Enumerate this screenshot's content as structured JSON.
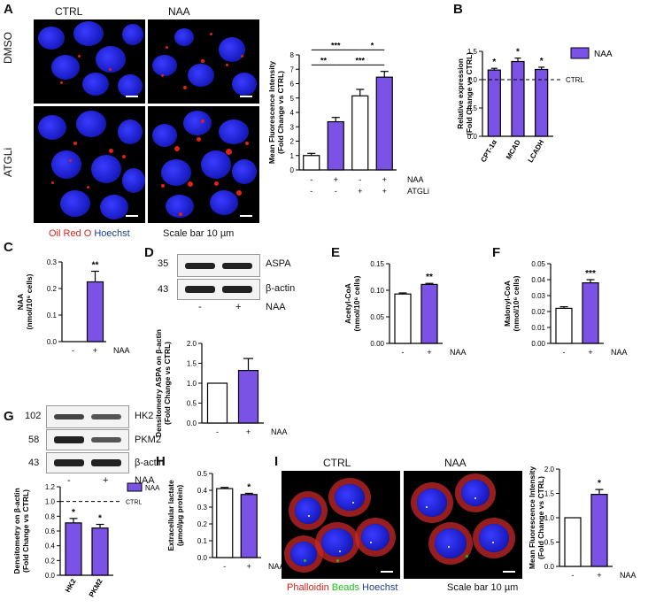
{
  "colors": {
    "naa": "#7b52e6",
    "ctrl": "#ffffff",
    "red": "#e0201a",
    "green": "#19c219",
    "blue": "#1b3d8f"
  },
  "panels": {
    "A": "A",
    "B": "B",
    "C": "C",
    "D": "D",
    "E": "E",
    "F": "F",
    "G": "G",
    "H": "H",
    "I": "I"
  },
  "A": {
    "col_ctrl": "CTRL",
    "col_naa": "NAA",
    "row_dmso": "DMSO",
    "row_atgli": "ATGLi",
    "legend_oil": "Oil Red O",
    "legend_hoechst": "Hoechst",
    "scale": "Scale bar 10 µm",
    "chart": {
      "type": "bar",
      "ylabel": "Mean Fluorescence Intensity\n(Fold Change vs CTRL)",
      "ylim": [
        0,
        8
      ],
      "yticks": [
        "0",
        "1",
        "2",
        "3",
        "4",
        "5",
        "6",
        "7",
        "8"
      ],
      "values": [
        1.0,
        3.35,
        5.15,
        6.45
      ],
      "errors": [
        0.15,
        0.3,
        0.45,
        0.4
      ],
      "row_naa": [
        "-",
        "+",
        "-",
        "+"
      ],
      "row_atgli": [
        "-",
        "-",
        "+",
        "+"
      ],
      "label_naa": "NAA",
      "label_atgli": "ATGLi",
      "sig": [
        "**",
        "***",
        "***",
        "*"
      ]
    }
  },
  "B": {
    "chart": {
      "type": "bar",
      "ylabel": "Relative expression\n(Fold Change vs CTRL)",
      "ylim": [
        0,
        1.5
      ],
      "yticks": [
        "0.0",
        "0.5",
        "1.0",
        "1.5"
      ],
      "categories": [
        "CPT-1α",
        "MCAD",
        "LCADH"
      ],
      "values": [
        1.17,
        1.32,
        1.18
      ],
      "errors": [
        0.03,
        0.06,
        0.04
      ],
      "stars": [
        "*",
        "*",
        "*"
      ],
      "ref_label": "CTRL",
      "legend": "NAA"
    }
  },
  "C": {
    "chart": {
      "type": "bar",
      "ylabel": "NAA\n(nmol/10⁶ cells)",
      "ylim": [
        0,
        0.3
      ],
      "yticks": [
        "0.0",
        "0.1",
        "0.2",
        "0.3"
      ],
      "values": [
        0.0,
        0.225
      ],
      "errors": [
        0,
        0.04
      ],
      "x": [
        "-",
        "+"
      ],
      "xlabel": "NAA",
      "stars": [
        "",
        "**"
      ]
    }
  },
  "D": {
    "blot": {
      "mw": [
        "35",
        "43"
      ],
      "bands": [
        "ASPA",
        "β-actin"
      ],
      "lanes": [
        "-",
        "+"
      ],
      "lane_label": "NAA"
    },
    "chart": {
      "type": "bar",
      "ylabel": "Densitometry ASPA on β-actin\n(Fold Change vs CTRL)",
      "ylim": [
        0,
        2.0
      ],
      "yticks": [
        "0.0",
        "0.5",
        "1.0",
        "1.5",
        "2.0"
      ],
      "values": [
        1.0,
        1.32
      ],
      "errors": [
        0,
        0.3
      ],
      "x": [
        "-",
        "+"
      ],
      "xlabel": "NAA"
    }
  },
  "E": {
    "chart": {
      "type": "bar",
      "ylabel": "Acetyl-CoA\n(nmol/10⁶ cells)",
      "ylim": [
        0,
        0.15
      ],
      "yticks": [
        "0.00",
        "0.05",
        "0.10",
        "0.15"
      ],
      "values": [
        0.093,
        0.111
      ],
      "errors": [
        0.002,
        0.002
      ],
      "x": [
        "-",
        "+"
      ],
      "xlabel": "NAA",
      "stars": [
        "",
        "**"
      ]
    }
  },
  "F": {
    "chart": {
      "type": "bar",
      "ylabel": "Malonyl-CoA\n(nmol/10⁶ cells)",
      "ylim": [
        0,
        0.05
      ],
      "yticks": [
        "0.00",
        "0.01",
        "0.02",
        "0.03",
        "0.04",
        "0.05"
      ],
      "values": [
        0.022,
        0.038
      ],
      "errors": [
        0.001,
        0.002
      ],
      "x": [
        "-",
        "+"
      ],
      "xlabel": "NAA",
      "stars": [
        "",
        "***"
      ]
    }
  },
  "G": {
    "blot": {
      "mw": [
        "102",
        "58",
        "43"
      ],
      "bands": [
        "HK2",
        "PKM2",
        "β-actin"
      ],
      "lanes": [
        "-",
        "+"
      ],
      "lane_label": "NAA"
    },
    "chart": {
      "type": "bar",
      "ylabel": "Densitometry on β-actin\n(Fold Change vs CTRL)",
      "ylim": [
        0,
        1.2
      ],
      "yticks": [
        "0.0",
        "0.2",
        "0.4",
        "0.6",
        "0.8",
        "1.0",
        "1.2"
      ],
      "categories": [
        "HK2",
        "PKM2"
      ],
      "values": [
        0.71,
        0.64
      ],
      "errors": [
        0.06,
        0.05
      ],
      "stars": [
        "*",
        "*"
      ],
      "ref_label": "CTRL",
      "legend": "NAA"
    }
  },
  "H": {
    "chart": {
      "type": "bar",
      "ylabel": "Extracellular lactate\n(µmol/µg protein)",
      "ylim": [
        0,
        0.5
      ],
      "yticks": [
        "0.0",
        "0.1",
        "0.2",
        "0.3",
        "0.4",
        "0.5"
      ],
      "values": [
        0.41,
        0.375
      ],
      "errors": [
        0.007,
        0.007
      ],
      "x": [
        "-",
        "+"
      ],
      "xlabel": "NAA",
      "stars": [
        "",
        "*"
      ]
    }
  },
  "I": {
    "col_ctrl": "CTRL",
    "col_naa": "NAA",
    "legend_phalloidin": "Phalloidin",
    "legend_beads": "Beads",
    "legend_hoechst": "Hoechst",
    "scale": "Scale bar 10 µm",
    "chart": {
      "type": "bar",
      "ylabel": "Mean Fluorescence Intensity\n(Fold Change vs CTRL)",
      "ylim": [
        0,
        2.0
      ],
      "yticks": [
        "0.0",
        "0.5",
        "1.0",
        "1.5",
        "2.0"
      ],
      "values": [
        1.0,
        1.48
      ],
      "errors": [
        0,
        0.1
      ],
      "x": [
        "-",
        "+"
      ],
      "xlabel": "NAA",
      "stars": [
        "",
        "*"
      ]
    }
  }
}
